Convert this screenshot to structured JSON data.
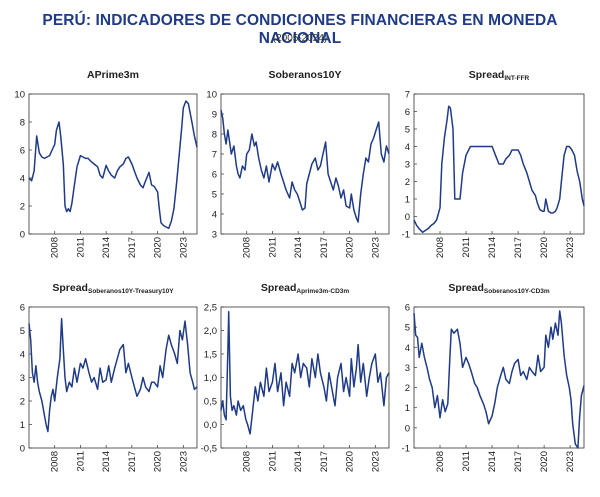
{
  "title": "PERÚ: INDICADORES DE CONDICIONES FINANCIERAS EN MONEDA NACIONAL",
  "subtitle": "(2005-2024)",
  "line_color": "#1f3b87",
  "title_color": "#1f3b87",
  "chart_data": [
    {
      "type": "line",
      "title": "APrime3m",
      "title_sub": "",
      "x_ticks": [
        "2008",
        "2011",
        "2014",
        "2017",
        "2020",
        "2023"
      ],
      "xlim": [
        2005.0,
        2024.6
      ],
      "ylim": [
        0,
        10
      ],
      "y_ticks": [
        "0",
        "2",
        "4",
        "6",
        "8",
        "10"
      ],
      "y_tick_values": [
        0,
        2,
        4,
        6,
        8,
        10
      ],
      "series": [
        {
          "x": [
            2005.0,
            2005.3,
            2005.6,
            2005.9,
            2006.2,
            2006.5,
            2006.8,
            2007.1,
            2007.4,
            2007.7,
            2008.0,
            2008.2,
            2008.5,
            2008.7,
            2009.0,
            2009.2,
            2009.4,
            2009.6,
            2009.8,
            2010.0,
            2010.3,
            2010.6,
            2011.0,
            2011.3,
            2011.6,
            2011.9,
            2012.2,
            2012.6,
            2013.0,
            2013.3,
            2013.6,
            2014.0,
            2014.3,
            2014.6,
            2015.0,
            2015.3,
            2015.6,
            2016.0,
            2016.3,
            2016.6,
            2017.0,
            2017.3,
            2017.6,
            2018.0,
            2018.3,
            2018.6,
            2019.0,
            2019.3,
            2019.6,
            2020.0,
            2020.2,
            2020.4,
            2020.7,
            2021.0,
            2021.3,
            2021.6,
            2021.9,
            2022.2,
            2022.5,
            2022.8,
            2023.0,
            2023.3,
            2023.6,
            2024.0,
            2024.3,
            2024.6
          ],
          "y": [
            4.0,
            3.8,
            4.5,
            7.0,
            5.8,
            5.5,
            5.4,
            5.5,
            5.6,
            6.0,
            6.4,
            7.4,
            8.0,
            7.0,
            5.0,
            2.0,
            1.6,
            1.8,
            1.6,
            2.2,
            3.5,
            4.8,
            5.6,
            5.5,
            5.4,
            5.4,
            5.2,
            5.0,
            4.8,
            4.2,
            4.0,
            4.9,
            4.5,
            4.2,
            4.0,
            4.5,
            4.8,
            5.0,
            5.4,
            5.5,
            5.0,
            4.5,
            4.0,
            3.5,
            3.3,
            3.8,
            4.4,
            3.5,
            3.4,
            3.0,
            1.8,
            0.8,
            0.6,
            0.5,
            0.4,
            0.9,
            1.8,
            3.5,
            5.5,
            7.5,
            9.0,
            9.5,
            9.3,
            8.0,
            7.0,
            6.2
          ]
        }
      ]
    },
    {
      "type": "line",
      "title": "Soberanos10Y",
      "title_sub": "",
      "x_ticks": [
        "2008",
        "2011",
        "2014",
        "2017",
        "2020",
        "2023"
      ],
      "xlim": [
        2005.0,
        2024.6
      ],
      "ylim": [
        3,
        10
      ],
      "y_ticks": [
        "3",
        "4",
        "5",
        "6",
        "7",
        "8",
        "9",
        "10"
      ],
      "y_tick_values": [
        3,
        4,
        5,
        6,
        7,
        8,
        9,
        10
      ],
      "series": [
        {
          "x": [
            2005.0,
            2005.2,
            2005.4,
            2005.6,
            2005.8,
            2006.0,
            2006.2,
            2006.5,
            2006.8,
            2007.0,
            2007.2,
            2007.5,
            2007.8,
            2008.0,
            2008.3,
            2008.6,
            2008.9,
            2009.1,
            2009.4,
            2009.7,
            2010.0,
            2010.3,
            2010.6,
            2011.0,
            2011.3,
            2011.6,
            2012.0,
            2012.3,
            2012.6,
            2013.0,
            2013.3,
            2013.6,
            2013.9,
            2014.2,
            2014.5,
            2014.8,
            2015.0,
            2015.3,
            2015.6,
            2016.0,
            2016.3,
            2016.6,
            2016.9,
            2017.2,
            2017.5,
            2017.8,
            2018.1,
            2018.4,
            2018.7,
            2019.0,
            2019.3,
            2019.6,
            2020.0,
            2020.2,
            2020.5,
            2020.8,
            2021.0,
            2021.3,
            2021.6,
            2021.9,
            2022.2,
            2022.5,
            2022.8,
            2023.1,
            2023.4,
            2023.7,
            2024.0,
            2024.3,
            2024.6
          ],
          "y": [
            9.2,
            8.8,
            8.0,
            7.5,
            8.2,
            7.6,
            7.0,
            7.4,
            6.4,
            6.0,
            5.8,
            6.4,
            6.2,
            7.0,
            7.2,
            8.0,
            7.4,
            7.6,
            6.8,
            6.2,
            5.8,
            6.4,
            5.6,
            6.5,
            6.2,
            6.6,
            6.0,
            5.6,
            5.2,
            4.8,
            5.6,
            5.2,
            5.0,
            4.6,
            4.2,
            4.3,
            5.5,
            6.0,
            6.5,
            6.8,
            6.2,
            6.4,
            7.0,
            7.6,
            6.0,
            5.6,
            5.2,
            5.8,
            5.4,
            4.8,
            5.2,
            4.4,
            4.3,
            5.0,
            4.2,
            3.8,
            3.6,
            5.0,
            6.0,
            6.8,
            6.6,
            7.5,
            7.8,
            8.2,
            8.6,
            7.0,
            6.6,
            7.4,
            7.0
          ]
        }
      ]
    },
    {
      "type": "line",
      "title": "Spread",
      "title_sub": "INT-FFR",
      "x_ticks": [
        "2008",
        "2011",
        "2014",
        "2017",
        "2020",
        "2023"
      ],
      "xlim": [
        2005.0,
        2024.6
      ],
      "ylim": [
        -1,
        7
      ],
      "y_ticks": [
        "-1",
        "0",
        "1",
        "2",
        "3",
        "4",
        "5",
        "6",
        "7"
      ],
      "y_tick_values": [
        -1,
        0,
        1,
        2,
        3,
        4,
        5,
        6,
        7
      ],
      "series": [
        {
          "x": [
            2005.0,
            2005.3,
            2005.6,
            2006.0,
            2006.3,
            2006.6,
            2007.0,
            2007.3,
            2007.6,
            2008.0,
            2008.2,
            2008.5,
            2008.8,
            2009.0,
            2009.2,
            2009.5,
            2009.7,
            2010.0,
            2010.3,
            2010.6,
            2011.0,
            2011.5,
            2012.0,
            2012.5,
            2013.0,
            2013.5,
            2014.0,
            2014.4,
            2014.8,
            2015.0,
            2015.3,
            2015.6,
            2016.0,
            2016.3,
            2016.6,
            2017.0,
            2017.3,
            2017.6,
            2018.0,
            2018.3,
            2018.6,
            2019.0,
            2019.2,
            2019.5,
            2019.8,
            2020.0,
            2020.2,
            2020.5,
            2020.8,
            2021.0,
            2021.3,
            2021.5,
            2021.8,
            2022.0,
            2022.3,
            2022.6,
            2022.9,
            2023.2,
            2023.5,
            2023.8,
            2024.1,
            2024.4,
            2024.6
          ],
          "y": [
            -0.2,
            -0.5,
            -0.7,
            -0.9,
            -0.8,
            -0.7,
            -0.5,
            -0.4,
            -0.2,
            0.5,
            3.0,
            4.5,
            5.5,
            6.3,
            6.2,
            5.0,
            1.0,
            1.0,
            1.0,
            2.5,
            3.5,
            4.0,
            4.0,
            4.0,
            4.0,
            4.0,
            4.0,
            3.5,
            3.0,
            3.0,
            3.0,
            3.3,
            3.5,
            3.8,
            3.8,
            3.8,
            3.5,
            3.0,
            2.5,
            2.0,
            1.5,
            1.2,
            0.8,
            0.4,
            0.3,
            0.3,
            1.0,
            0.3,
            0.2,
            0.2,
            0.3,
            0.5,
            1.0,
            2.0,
            3.5,
            4.0,
            4.0,
            3.8,
            3.5,
            2.6,
            2.0,
            1.0,
            0.6
          ]
        }
      ]
    },
    {
      "type": "line",
      "title": "Spread",
      "title_sub": "Soberanos10Y-Treasury10Y",
      "x_ticks": [
        "2008",
        "2011",
        "2014",
        "2017",
        "2020",
        "2023"
      ],
      "xlim": [
        2005.0,
        2024.6
      ],
      "ylim": [
        0,
        6
      ],
      "y_ticks": [
        "0",
        "1",
        "2",
        "3",
        "4",
        "5",
        "6"
      ],
      "y_tick_values": [
        0,
        1,
        2,
        3,
        4,
        5,
        6
      ],
      "series": [
        {
          "x": [
            2005.0,
            2005.2,
            2005.4,
            2005.6,
            2005.8,
            2006.0,
            2006.2,
            2006.5,
            2006.8,
            2007.0,
            2007.2,
            2007.4,
            2007.6,
            2007.8,
            2008.0,
            2008.3,
            2008.6,
            2008.8,
            2009.0,
            2009.2,
            2009.4,
            2009.7,
            2010.0,
            2010.3,
            2010.6,
            2011.0,
            2011.3,
            2011.6,
            2012.0,
            2012.3,
            2012.6,
            2013.0,
            2013.3,
            2013.6,
            2014.0,
            2014.3,
            2014.6,
            2015.0,
            2015.3,
            2015.6,
            2016.0,
            2016.3,
            2016.6,
            2017.0,
            2017.3,
            2017.6,
            2018.0,
            2018.3,
            2018.6,
            2019.0,
            2019.3,
            2019.6,
            2020.0,
            2020.3,
            2020.6,
            2021.0,
            2021.3,
            2021.6,
            2022.0,
            2022.3,
            2022.6,
            2022.9,
            2023.2,
            2023.5,
            2023.8,
            2024.1,
            2024.3,
            2024.6
          ],
          "y": [
            5.3,
            4.6,
            3.2,
            2.8,
            3.5,
            2.8,
            2.4,
            2.0,
            1.4,
            1.0,
            0.7,
            1.6,
            2.2,
            2.5,
            2.0,
            3.0,
            3.8,
            5.5,
            4.2,
            3.0,
            2.4,
            2.8,
            2.6,
            3.4,
            2.8,
            3.6,
            3.4,
            3.8,
            3.2,
            2.8,
            3.0,
            2.5,
            3.4,
            2.8,
            2.9,
            3.5,
            2.8,
            3.4,
            3.8,
            4.2,
            4.4,
            3.2,
            3.6,
            3.0,
            2.6,
            2.2,
            2.5,
            3.0,
            2.6,
            2.4,
            2.8,
            2.8,
            2.6,
            3.5,
            3.0,
            4.2,
            4.8,
            4.4,
            4.0,
            3.6,
            5.0,
            4.6,
            5.4,
            4.4,
            3.2,
            2.8,
            2.5,
            2.6
          ]
        }
      ]
    },
    {
      "type": "line",
      "title": "Spread",
      "title_sub": "Aprime3m-CD3m",
      "x_ticks": [
        "2008",
        "2011",
        "2014",
        "2017",
        "2020",
        "2023"
      ],
      "xlim": [
        2005.0,
        2024.6
      ],
      "ylim": [
        -0.5,
        2.5
      ],
      "y_ticks": [
        "-0,5",
        "0,0",
        "0,5",
        "1,0",
        "1,5",
        "2,0",
        "2,5"
      ],
      "y_tick_values": [
        -0.5,
        0.0,
        0.5,
        1.0,
        1.5,
        2.0,
        2.5
      ],
      "series": [
        {
          "x": [
            2005.0,
            2005.2,
            2005.4,
            2005.6,
            2005.8,
            2005.9,
            2006.1,
            2006.3,
            2006.5,
            2006.8,
            2007.0,
            2007.3,
            2007.6,
            2007.9,
            2008.1,
            2008.4,
            2008.7,
            2009.0,
            2009.3,
            2009.6,
            2010.0,
            2010.3,
            2010.6,
            2011.0,
            2011.3,
            2011.6,
            2012.0,
            2012.3,
            2012.6,
            2013.0,
            2013.3,
            2013.6,
            2014.0,
            2014.3,
            2014.6,
            2015.0,
            2015.3,
            2015.6,
            2016.0,
            2016.3,
            2016.6,
            2017.0,
            2017.3,
            2017.6,
            2018.0,
            2018.3,
            2018.6,
            2019.0,
            2019.3,
            2019.6,
            2020.0,
            2020.2,
            2020.5,
            2020.8,
            2021.0,
            2021.3,
            2021.6,
            2022.0,
            2022.3,
            2022.6,
            2023.0,
            2023.3,
            2023.6,
            2024.0,
            2024.3,
            2024.6
          ],
          "y": [
            0.3,
            0.5,
            0.2,
            0.1,
            1.6,
            2.4,
            0.6,
            0.3,
            0.4,
            0.2,
            0.5,
            0.3,
            0.4,
            0.1,
            0.0,
            -0.2,
            0.3,
            0.8,
            0.5,
            0.9,
            0.6,
            1.2,
            0.7,
            0.9,
            1.3,
            0.7,
            1.1,
            0.4,
            0.9,
            0.6,
            1.3,
            1.1,
            1.5,
            1.0,
            1.3,
            1.2,
            0.8,
            1.4,
            1.0,
            1.5,
            1.1,
            0.8,
            0.5,
            1.1,
            0.7,
            0.4,
            1.0,
            1.3,
            0.7,
            1.0,
            0.6,
            1.4,
            0.8,
            1.2,
            1.7,
            0.9,
            1.3,
            0.6,
            1.0,
            1.3,
            1.5,
            0.9,
            1.1,
            0.4,
            1.0,
            1.1
          ]
        }
      ]
    },
    {
      "type": "line",
      "title": "Spread",
      "title_sub": "Soberanos10Y-CD3m",
      "x_ticks": [
        "2008",
        "2011",
        "2014",
        "2017",
        "2020",
        "2023"
      ],
      "xlim": [
        2005.0,
        2024.6
      ],
      "ylim": [
        -1,
        6
      ],
      "y_ticks": [
        "-1",
        "0",
        "1",
        "2",
        "3",
        "4",
        "5",
        "6"
      ],
      "y_tick_values": [
        -1,
        0,
        1,
        2,
        3,
        4,
        5,
        6
      ],
      "series": [
        {
          "x": [
            2005.0,
            2005.2,
            2005.4,
            2005.6,
            2005.9,
            2006.2,
            2006.5,
            2006.8,
            2007.1,
            2007.4,
            2007.7,
            2008.0,
            2008.3,
            2008.6,
            2008.9,
            2009.1,
            2009.3,
            2009.6,
            2010.0,
            2010.3,
            2010.6,
            2011.0,
            2011.3,
            2011.6,
            2012.0,
            2012.3,
            2012.6,
            2013.0,
            2013.3,
            2013.6,
            2014.0,
            2014.3,
            2014.6,
            2015.0,
            2015.3,
            2015.6,
            2016.0,
            2016.3,
            2016.6,
            2017.0,
            2017.3,
            2017.6,
            2018.0,
            2018.3,
            2018.6,
            2019.0,
            2019.3,
            2019.6,
            2020.0,
            2020.2,
            2020.5,
            2020.8,
            2021.0,
            2021.3,
            2021.6,
            2021.8,
            2022.0,
            2022.3,
            2022.6,
            2022.9,
            2023.1,
            2023.3,
            2023.6,
            2023.9,
            2024.1,
            2024.3,
            2024.6
          ],
          "y": [
            5.7,
            4.6,
            4.5,
            3.5,
            4.2,
            3.5,
            3.0,
            2.4,
            2.0,
            1.0,
            1.6,
            0.5,
            1.4,
            0.8,
            1.2,
            3.2,
            4.9,
            4.7,
            4.9,
            4.2,
            3.0,
            3.5,
            3.2,
            2.8,
            2.2,
            2.0,
            1.6,
            1.2,
            0.8,
            0.2,
            0.6,
            1.2,
            2.0,
            2.6,
            3.0,
            2.4,
            2.2,
            2.8,
            3.2,
            3.4,
            2.6,
            2.8,
            2.4,
            3.0,
            2.8,
            2.6,
            3.6,
            2.8,
            3.0,
            4.6,
            4.0,
            5.0,
            4.4,
            5.2,
            4.6,
            5.8,
            5.2,
            3.6,
            2.6,
            2.0,
            1.4,
            0.2,
            -0.8,
            -1.0,
            0.6,
            1.6,
            2.1
          ]
        }
      ]
    }
  ]
}
